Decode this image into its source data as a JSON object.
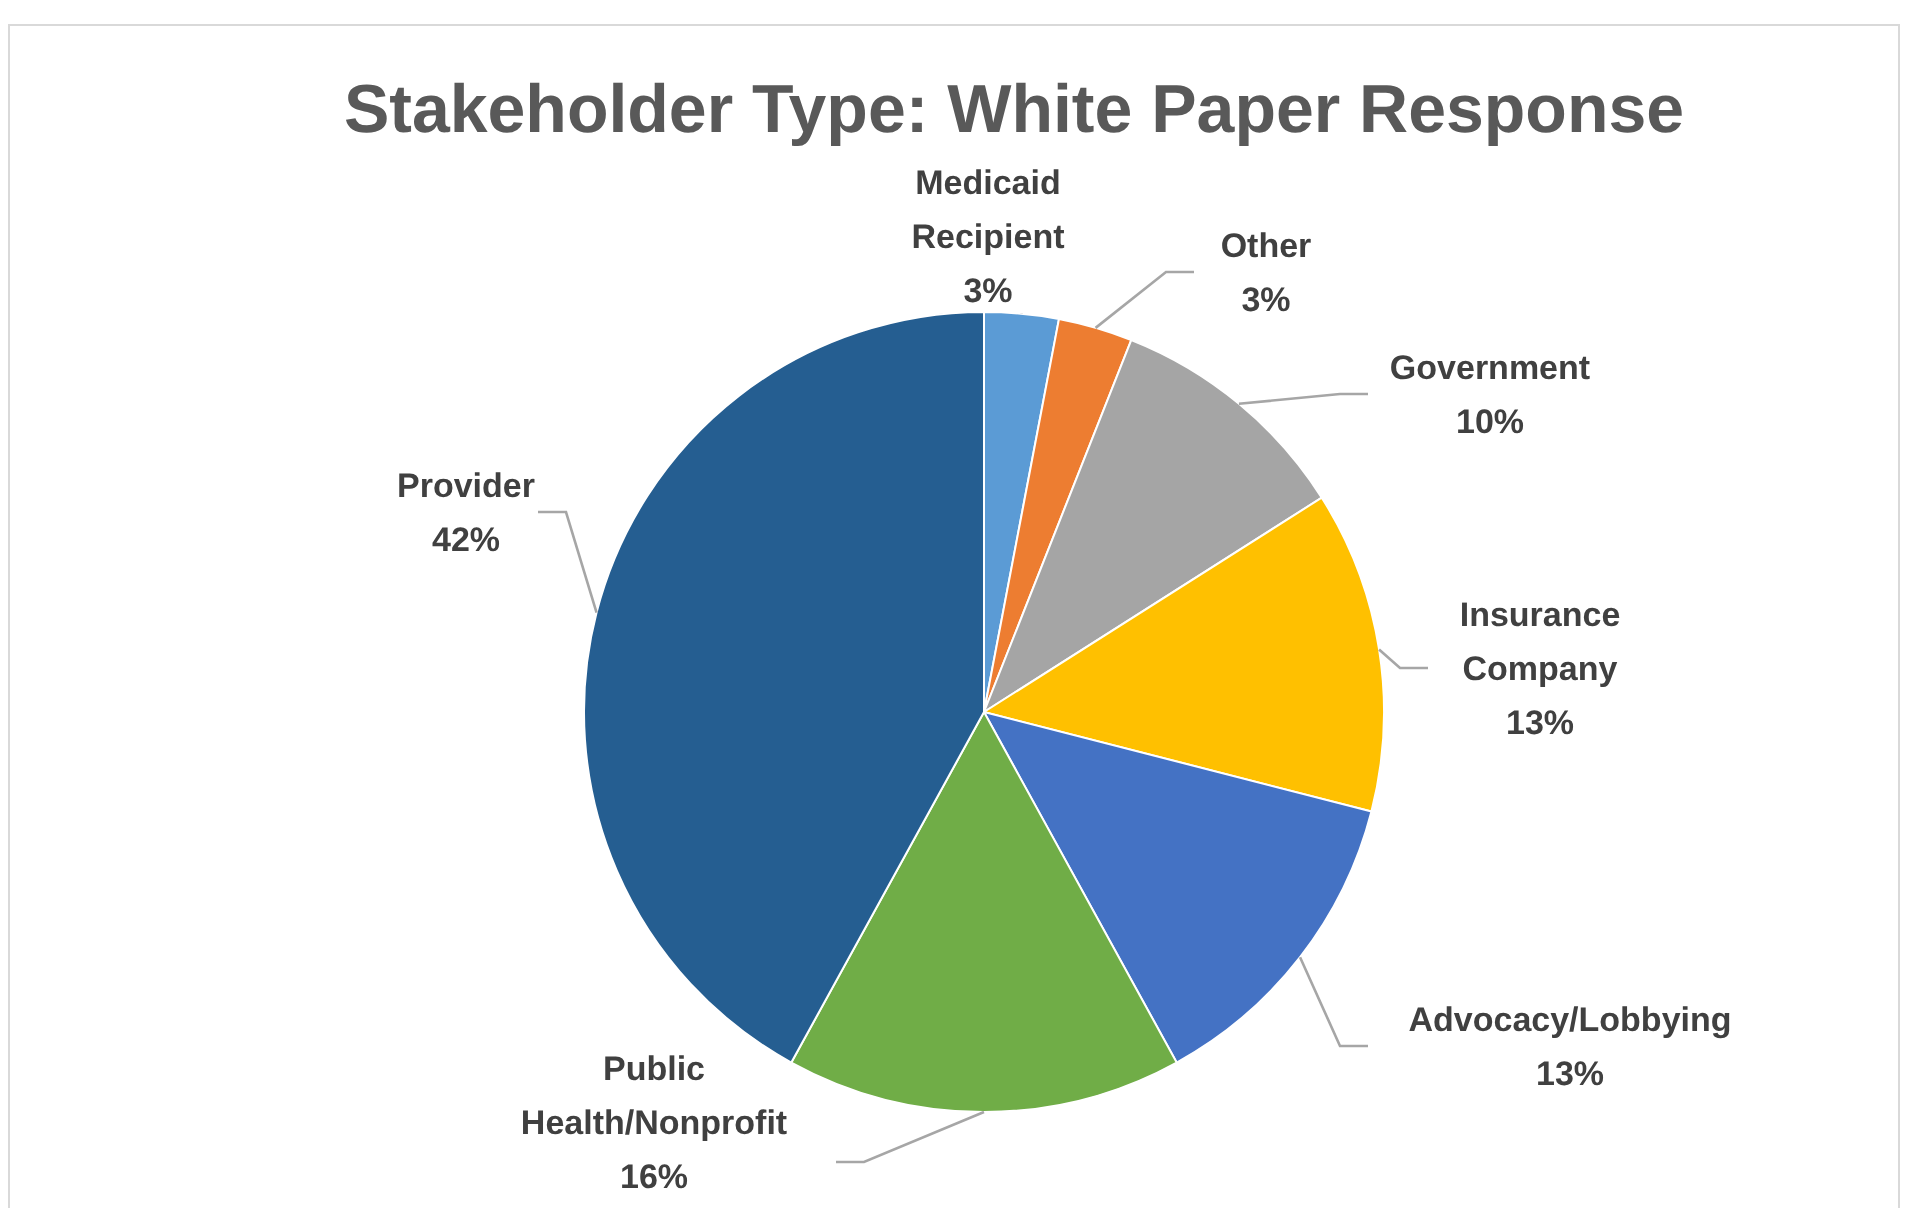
{
  "chart_data": {
    "type": "pie",
    "title": "Stakeholder Type: White Paper Response",
    "categories": [
      "Medicaid Recipient",
      "Other",
      "Government",
      "Insurance Company",
      "Advocacy/Lobbying",
      "Public Health/Nonprofit",
      "Provider"
    ],
    "values": [
      3,
      3,
      10,
      13,
      13,
      16,
      42
    ],
    "colors": [
      "#5b9bd5",
      "#ed7d31",
      "#a5a5a5",
      "#ffc000",
      "#4472c4",
      "#70ad47",
      "#255e91"
    ],
    "value_labels": [
      "3%",
      "3%",
      "10%",
      "13%",
      "13%",
      "16%",
      "42%"
    ],
    "legend": false
  }
}
